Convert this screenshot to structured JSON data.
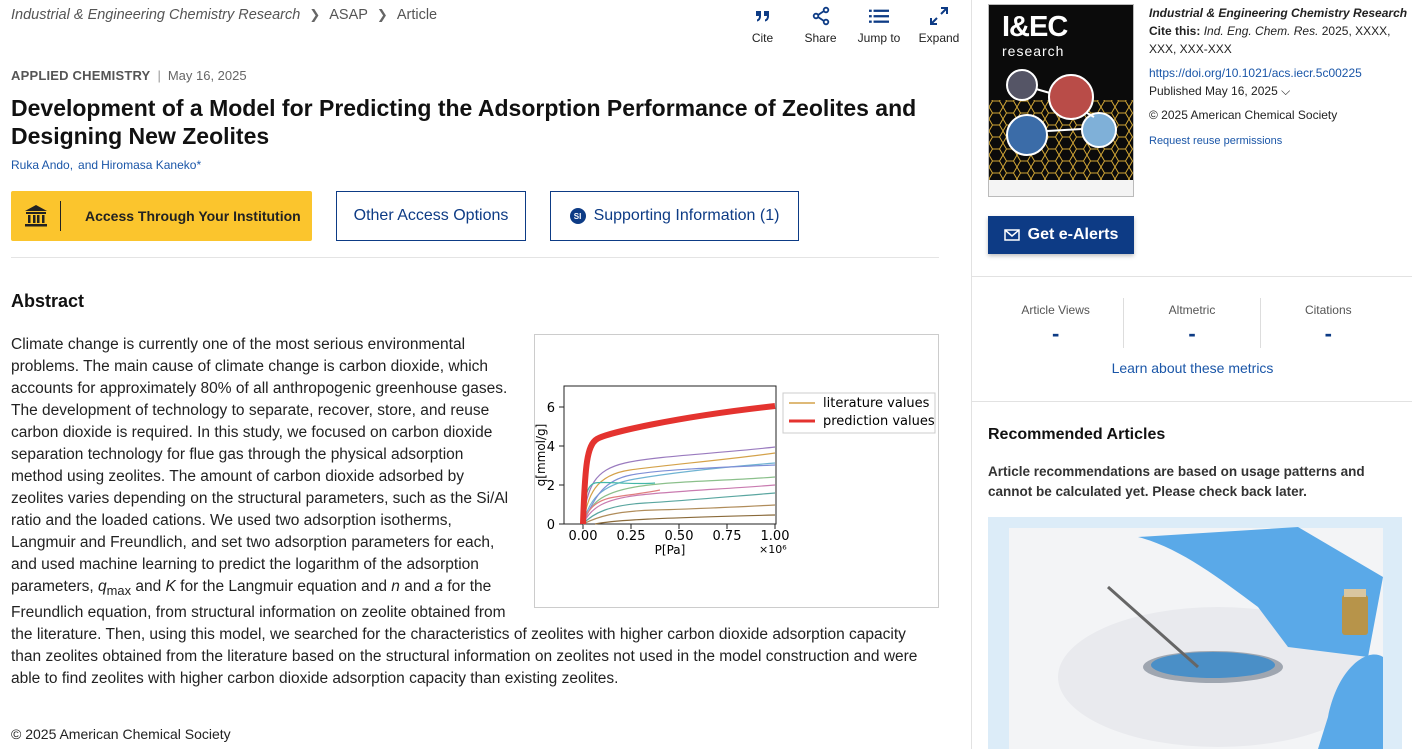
{
  "breadcrumb": {
    "journal": "Industrial & Engineering Chemistry Research",
    "section": "ASAP",
    "type": "Article"
  },
  "toolbar": {
    "cite": "Cite",
    "share": "Share",
    "jump": "Jump to",
    "expand": "Expand"
  },
  "article": {
    "category": "APPLIED CHEMISTRY",
    "date": "May 16, 2025",
    "title": "Development of a Model for Predicting the Adsorption Performance of Zeolites and Designing New Zeolites",
    "author1": "Ruka Ando,",
    "and": "and",
    "author2": "Hiromasa Kaneko*"
  },
  "access": {
    "institution": "Access Through Your Institution",
    "other": "Other Access Options",
    "si_badge": "SI",
    "si": "Supporting Information (1)"
  },
  "abstract": {
    "heading": "Abstract",
    "p1": "Climate change is currently one of the most serious environmental problems. The main cause of climate change is carbon dioxide, which accounts for approximately 80% of all anthropogenic greenhouse gases. The development of technology to separate, recover, store, and reuse carbon dioxide is required. In this study, we focused on carbon dioxide separation technology for flue gas through the physical adsorption method using zeolites. The amount of carbon dioxide adsorbed by zeolites varies depending on the structural parameters, such as the Si/Al ratio and the loaded cations. We used two adsorption isotherms, Langmuir and Freundlich, and set two adsorption parameters for each, and used machine learning to predict the logarithm of the adsorption parameters, ",
    "q": "q",
    "qsub": "max",
    "p2": " and ",
    "K": "K",
    "p3": " for the Langmuir equation and ",
    "n": "n",
    "p4": " and ",
    "a": "a",
    "p5": " for the Freundlich equation, from structural information on zeolite obtained from the literature. Then, using this model, we searched for the characteristics of zeolites with higher carbon dioxide adsorption capacity than zeolites obtained from the literature based on the structural information on zeolites not used in the model construction and were able to find zeolites with higher carbon dioxide adsorption capacity than existing zeolites.",
    "copyright": "© 2025 American Chemical Society"
  },
  "toc_chart": {
    "ylabel": "q[mmol/g]",
    "xlabel": "P[Pa]",
    "xscale": "×10⁶",
    "xticks": [
      "0.00",
      "0.25",
      "0.50",
      "0.75",
      "1.00"
    ],
    "yticks": [
      "0",
      "2",
      "4",
      "6"
    ],
    "legend": [
      "literature values",
      "prediction values"
    ]
  },
  "sidebar": {
    "cover_brand": "I&EC",
    "cover_sub": "research",
    "journal": "Industrial & Engineering Chemistry Research",
    "cite_label": "Cite this:",
    "cite_journal": "Ind. Eng. Chem. Res.",
    "cite_rest": " 2025, XXXX, XXX, XXX-XXX",
    "doi": "https://doi.org/10.1021/acs.iecr.5c00225",
    "published": "Published May 16, 2025",
    "acs": "© 2025 American Chemical Society",
    "reuse": "Request reuse permissions",
    "alerts": "Get e-Alerts",
    "metrics": [
      {
        "label": "Article Views",
        "value": "-"
      },
      {
        "label": "Altmetric",
        "value": "-"
      },
      {
        "label": "Citations",
        "value": "-"
      }
    ],
    "learn": "Learn about these metrics",
    "rec_heading": "Recommended Articles",
    "rec_text": "Article recommendations are based on usage patterns and cannot be calculated yet. Please check back later."
  },
  "colors": {
    "accent": "#0d3b85",
    "gold": "#fbc52d",
    "link": "#1a56a8"
  }
}
